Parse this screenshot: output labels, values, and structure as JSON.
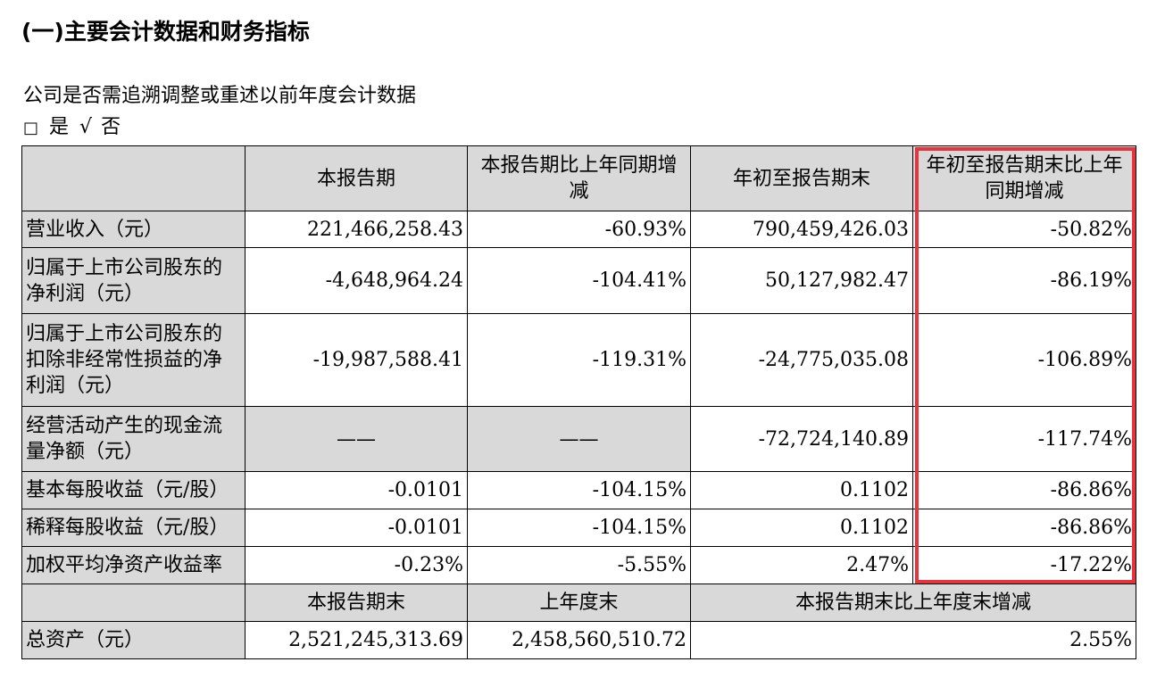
{
  "title": "(一)主要会计数据和财务指标",
  "question": "公司是否需追溯调整或重述以前年度会计数据",
  "options": {
    "box_symbol": "□",
    "yes_label": "是",
    "check_symbol": "√",
    "no_label": "否"
  },
  "table": {
    "headers": [
      "本报告期",
      "本报告期比上年同期增减",
      "年初至报告期末",
      "年初至报告期末比上年同期增减"
    ],
    "rows": [
      {
        "label": "营业收入（元）",
        "values": [
          "221,466,258.43",
          "-60.93%",
          "790,459,426.03",
          "-50.82%"
        ]
      },
      {
        "label": "归属于上市公司股东的净利润（元）",
        "values": [
          "-4,648,964.24",
          "-104.41%",
          "50,127,982.47",
          "-86.19%"
        ]
      },
      {
        "label": "归属于上市公司股东的扣除非经常性损益的净利润（元）",
        "values": [
          "-19,987,588.41",
          "-119.31%",
          "-24,775,035.08",
          "-106.89%"
        ]
      },
      {
        "label": "经营活动产生的现金流量净额（元）",
        "values": [
          "——",
          "——",
          "-72,724,140.89",
          "-117.74%"
        ]
      },
      {
        "label": "基本每股收益（元/股）",
        "values": [
          "-0.0101",
          "-104.15%",
          "0.1102",
          "-86.86%"
        ]
      },
      {
        "label": "稀释每股收益（元/股）",
        "values": [
          "-0.0101",
          "-104.15%",
          "0.1102",
          "-86.86%"
        ]
      },
      {
        "label": "加权平均净资产收益率",
        "values": [
          "-0.23%",
          "-5.55%",
          "2.47%",
          "-17.22%"
        ]
      }
    ],
    "headers2": [
      "本报告期末",
      "上年度末",
      "本报告期末比上年度末增减"
    ],
    "total_assets": {
      "label": "总资产（元）",
      "values": [
        "2,521,245,313.69",
        "2,458,560,510.72",
        "2.55%"
      ]
    }
  },
  "highlight_color": "#e8323c"
}
